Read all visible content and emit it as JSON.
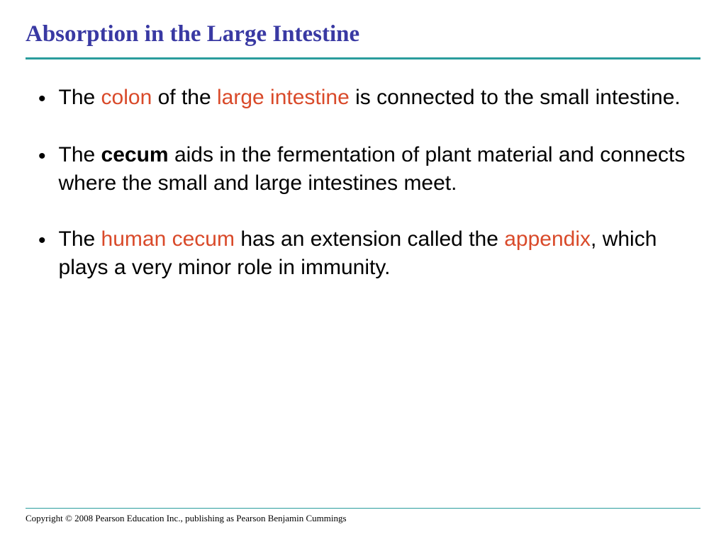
{
  "title": "Absorption in the Large Intestine",
  "colors": {
    "title": "#3939a3",
    "divider": "#2a9d9d",
    "highlight": "#d94a2a",
    "text": "#000000",
    "background": "#ffffff"
  },
  "typography": {
    "title_fontsize": 33,
    "body_fontsize": 30,
    "copyright_fontsize": 13,
    "title_font": "Times New Roman",
    "body_font": "Arial"
  },
  "bullets": [
    {
      "segments": [
        {
          "text": "The ",
          "style": "plain"
        },
        {
          "text": "colon",
          "style": "highlight"
        },
        {
          "text": " of the ",
          "style": "plain"
        },
        {
          "text": "large intestine",
          "style": "highlight"
        },
        {
          "text": " is connected to the small intestine.",
          "style": "plain"
        }
      ]
    },
    {
      "segments": [
        {
          "text": "The ",
          "style": "plain"
        },
        {
          "text": "cecum",
          "style": "bold"
        },
        {
          "text": " aids in the fermentation of plant material and connects where the small and large intestines meet.",
          "style": "plain"
        }
      ]
    },
    {
      "segments": [
        {
          "text": "The ",
          "style": "plain"
        },
        {
          "text": "human cecum",
          "style": "highlight"
        },
        {
          "text": " has an extension called the ",
          "style": "plain"
        },
        {
          "text": "appendix",
          "style": "highlight"
        },
        {
          "text": ", which plays a very minor role in immunity.",
          "style": "plain"
        }
      ]
    }
  ],
  "copyright": "Copyright © 2008 Pearson Education Inc., publishing  as Pearson Benjamin Cummings"
}
